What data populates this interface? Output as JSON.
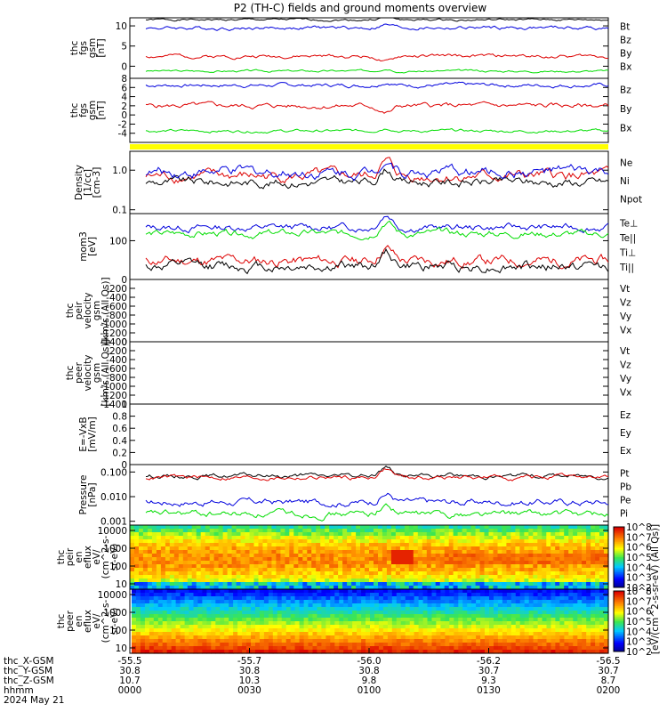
{
  "title": "P2 (TH-C) fields and ground moments overview",
  "colors": {
    "black": "#000000",
    "red": "#dd0000",
    "green": "#00dd00",
    "blue": "#0000dd",
    "yellow": "#ffff00"
  },
  "chart_data": [
    {
      "type": "line",
      "name": "fgs",
      "ylabel": [
        "thc",
        "fgs",
        "gsm",
        "[nT]"
      ],
      "ylim": [
        -3,
        12
      ],
      "yticks": [
        0,
        5,
        10
      ],
      "series": [
        {
          "name": "Bt",
          "color": "#000000",
          "base": 11.5,
          "amp": 0.6,
          "seed": 1
        },
        {
          "name": "Bz",
          "color": "#dd0000",
          "base": 2.5,
          "amp": 1.0,
          "seed": 2
        },
        {
          "name": "By",
          "color": "#00dd00",
          "base": -1.2,
          "amp": 0.6,
          "seed": 3
        },
        {
          "name": "Bx",
          "color": "#0000dd",
          "base": 9.5,
          "amp": 1.0,
          "seed": 4
        }
      ],
      "legend": [
        "Bt",
        "Bz",
        "By",
        "Bx"
      ]
    },
    {
      "type": "line",
      "name": "fgs_dsl",
      "ylabel": [
        "thc",
        "fgs",
        "gsm",
        "[nT]"
      ],
      "ylim": [
        -6,
        8
      ],
      "yticks": [
        -4,
        -2,
        0,
        2,
        4,
        6,
        8
      ],
      "series": [
        {
          "name": "Bz",
          "color": "#dd0000",
          "base": 2,
          "amp": 1.2,
          "seed": 5
        },
        {
          "name": "By",
          "color": "#00dd00",
          "base": -3.5,
          "amp": 0.7,
          "seed": 6
        },
        {
          "name": "Bx",
          "color": "#0000dd",
          "base": 6.5,
          "amp": 0.9,
          "seed": 7
        }
      ],
      "legend": [
        "Bz",
        "By",
        "Bx"
      ]
    },
    {
      "type": "line",
      "name": "density",
      "ylabel": [
        "Density",
        "[1/cc]",
        "[cm-3]"
      ],
      "ylim": [
        0.08,
        3
      ],
      "log": true,
      "yticks": [
        0.1,
        1.0
      ],
      "ytick_labels": [
        "0.1",
        "1.0"
      ],
      "series": [
        {
          "name": "Ne",
          "color": "#dd0000",
          "base": 0.7,
          "amp": 0.3,
          "seed": 8
        },
        {
          "name": "Ni",
          "color": "#000000",
          "base": 0.5,
          "amp": 0.25,
          "seed": 9
        },
        {
          "name": "Npot",
          "color": "#0000dd",
          "base": 0.9,
          "amp": 0.3,
          "seed": 10
        }
      ],
      "legend": [
        "Ne",
        "Ni",
        "Npot"
      ]
    },
    {
      "type": "line",
      "name": "temperature",
      "ylabel": [
        "mom3",
        "[eV]"
      ],
      "ylim": [
        10,
        500
      ],
      "log": true,
      "yticks": [
        100
      ],
      "ytick_labels": [
        "100"
      ],
      "series": [
        {
          "name": "Te⊥",
          "color": "#dd0000",
          "base": 30,
          "amp": 0.3,
          "seed": 11
        },
        {
          "name": "Te||",
          "color": "#000000",
          "base": 22,
          "amp": 0.3,
          "seed": 12
        },
        {
          "name": "Ti⊥",
          "color": "#0000dd",
          "base": 220,
          "amp": 0.2,
          "seed": 13
        },
        {
          "name": "Ti||",
          "color": "#00dd00",
          "base": 150,
          "amp": 0.2,
          "seed": 14
        }
      ],
      "legend": [
        "Te⊥",
        "Te||",
        "Ti⊥",
        "Ti||"
      ]
    },
    {
      "type": "line",
      "name": "peir_velocity",
      "ylabel": [
        "thc",
        "peir",
        "velocity",
        "gsm",
        "[km/s (All Qs)]"
      ],
      "ylim": [
        -1400,
        0
      ],
      "yticks": [
        0,
        -200,
        -400,
        -600,
        -800,
        -1000,
        -1200,
        -1400
      ],
      "series": [],
      "legend": [
        "Vt",
        "Vz",
        "Vy",
        "Vx"
      ]
    },
    {
      "type": "line",
      "name": "peer_velocity",
      "ylabel": [
        "thc",
        "peer",
        "velocity",
        "gsm",
        "[km/s (All Qs)]"
      ],
      "ylim": [
        -1400,
        0
      ],
      "yticks": [
        0,
        -200,
        -400,
        -600,
        -800,
        -1000,
        -1200,
        -1400
      ],
      "series": [],
      "legend": [
        "Vt",
        "Vz",
        "Vy",
        "Vx"
      ]
    },
    {
      "type": "line",
      "name": "efield",
      "ylabel": [
        "E=-VxB",
        "[mV/m]"
      ],
      "ylim": [
        0,
        1
      ],
      "yticks": [
        0,
        0.2,
        0.4,
        0.6,
        0.8,
        1.0
      ],
      "series": [],
      "legend": [
        "Ez",
        "Ey",
        "Ex"
      ]
    },
    {
      "type": "line",
      "name": "pressure",
      "ylabel": [
        "Pressure",
        "[nPa]"
      ],
      "ylim": [
        0.0007,
        0.2
      ],
      "log": true,
      "yticks": [
        0.001,
        0.01,
        0.1
      ],
      "ytick_labels": [
        "0.001",
        "0.010",
        "0.100"
      ],
      "series": [
        {
          "name": "Pt",
          "color": "#000000",
          "base": 0.07,
          "amp": 0.2,
          "seed": 15
        },
        {
          "name": "Pb",
          "color": "#dd0000",
          "base": 0.06,
          "amp": 0.2,
          "seed": 16
        },
        {
          "name": "Pe",
          "color": "#0000dd",
          "base": 0.006,
          "amp": 0.3,
          "seed": 17
        },
        {
          "name": "Pi",
          "color": "#00dd00",
          "base": 0.002,
          "amp": 0.3,
          "seed": 18
        }
      ],
      "legend": [
        "Pt",
        "Pb",
        "Pe",
        "Pi"
      ]
    },
    {
      "type": "heatmap",
      "name": "peir_spectrogram",
      "ylabel": [
        "thc",
        "peir",
        "en",
        "eflux",
        "eV/",
        "(cm^2-s-",
        "sr-eV)"
      ],
      "ylim": [
        5,
        20000
      ],
      "log": true,
      "yticks": [
        10,
        100,
        1000,
        10000
      ],
      "ytick_labels": [
        "10",
        "100",
        "1000",
        "10000"
      ]
    },
    {
      "type": "heatmap",
      "name": "peer_spectrogram",
      "ylabel": [
        "thc",
        "peer",
        "en",
        "eflux",
        "eV/",
        "(cm^2-s-",
        "sr-eV)"
      ],
      "ylim": [
        5,
        20000
      ],
      "log": true,
      "yticks": [
        10,
        100,
        1000,
        10000
      ],
      "ytick_labels": [
        "10",
        "100",
        "1000",
        "10000"
      ]
    }
  ],
  "colorbar": {
    "label": "[eV/(cm^2-s-sr-eV) (All Qs)]",
    "peir_ticks": [
      "10^2",
      "10^3",
      "10^4",
      "10^5",
      "10^6",
      "10^7",
      "10^8"
    ],
    "peer_ticks": [
      "10^2",
      "10^3",
      "10^4",
      "10^5",
      "10^6",
      "10^7",
      "10^8"
    ]
  },
  "xaxis": {
    "row_labels": [
      "thc_X-GSM",
      "thc_Y-GSM",
      "thc_Z-GSM",
      "hhmm"
    ],
    "date": "2024 May 21",
    "ticks": [
      {
        "x": "-55.5",
        "y": "30.8",
        "z": "10.7",
        "t": "0000"
      },
      {
        "x": "-55.7",
        "y": "30.8",
        "z": "10.3",
        "t": "0030"
      },
      {
        "x": "-56.0",
        "y": "30.8",
        "z": "9.8",
        "t": "0100"
      },
      {
        "x": "-56.2",
        "y": "30.7",
        "z": "9.3",
        "t": "0130"
      },
      {
        "x": "-56.5",
        "y": "30.7",
        "z": "8.7",
        "t": "0200"
      }
    ]
  }
}
